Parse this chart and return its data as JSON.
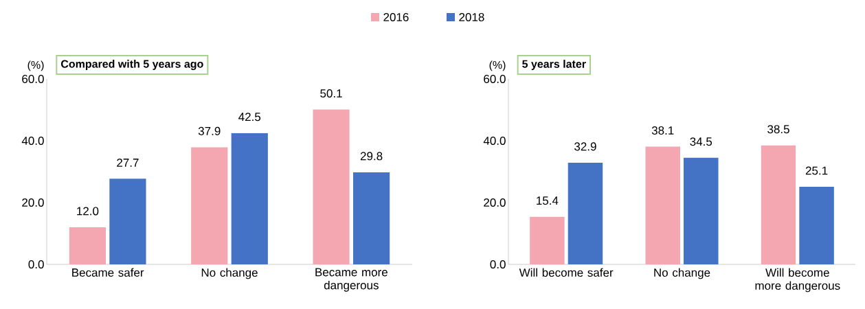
{
  "chart_data": [
    {
      "type": "bar",
      "title": "Compared with 5 years ago",
      "ylabel": "(%)",
      "categories": [
        "Became safer",
        "No change",
        "Became more dangerous"
      ],
      "series": [
        {
          "name": "2016",
          "color": "#f4a7b0",
          "values": [
            12.0,
            37.9,
            50.1
          ],
          "value_labels": [
            "12.0",
            "37.9",
            "50.1"
          ]
        },
        {
          "name": "2018",
          "color": "#4472c4",
          "values": [
            27.7,
            42.5,
            29.8
          ],
          "value_labels": [
            "27.7",
            "42.5",
            "29.8"
          ]
        }
      ],
      "ylim": [
        0,
        60
      ],
      "yticks": [
        {
          "value": 0,
          "label": "0.0"
        },
        {
          "value": 20,
          "label": "20.0"
        },
        {
          "value": 40,
          "label": "40.0"
        },
        {
          "value": 60,
          "label": "60.0"
        }
      ],
      "grid": false,
      "legend": "top"
    },
    {
      "type": "bar",
      "title": "5 years later",
      "ylabel": "(%)",
      "categories": [
        "Will become safer",
        "No change",
        "Will become more dangerous"
      ],
      "series": [
        {
          "color": "#f4a7b0",
          "values": [
            15.4,
            38.1,
            38.5
          ],
          "value_labels": [
            "15.4",
            "38.1",
            "38.5"
          ]
        },
        {
          "color": "#4472c4",
          "values": [
            32.9,
            34.5,
            25.1
          ],
          "value_labels": [
            "32.9",
            "34.5",
            "25.1"
          ]
        }
      ],
      "ylim": [
        0,
        60
      ],
      "yticks": [
        {
          "value": 0,
          "label": "0.0"
        },
        {
          "value": 20,
          "label": "20.0"
        },
        {
          "value": 40,
          "label": "40.0"
        },
        {
          "value": 60,
          "label": "60.0"
        }
      ],
      "grid": false
    }
  ]
}
